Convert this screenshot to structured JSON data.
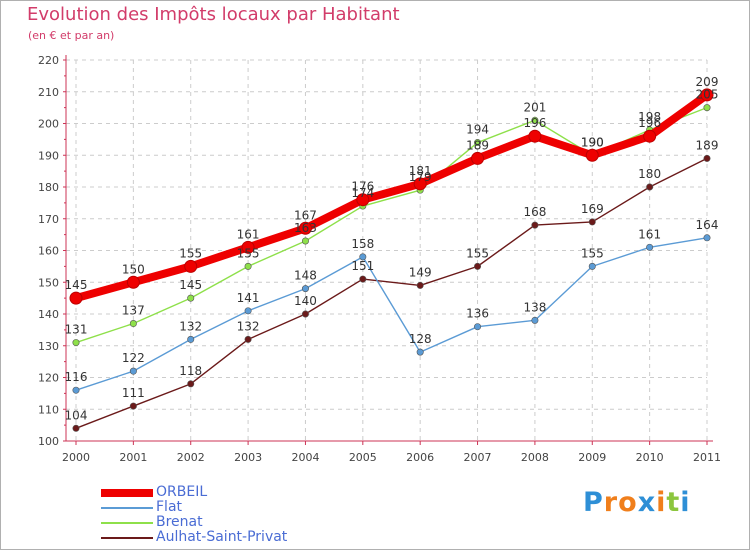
{
  "title": "Evolution des Impôts locaux par Habitant",
  "subtitle": "(en € et par an)",
  "brand": {
    "letters": [
      "P",
      "r",
      "o",
      "x",
      "i",
      "t",
      "i"
    ],
    "colors": [
      "#2e8fd6",
      "#f07f1c",
      "#f07f1c",
      "#2e8fd6",
      "#f07f1c",
      "#8cc63e",
      "#2e8fd6"
    ]
  },
  "chart_data": {
    "type": "line",
    "title": "Evolution des Impôts locaux par Habitant",
    "subtitle": "(en € et par an)",
    "xlabel": "",
    "ylabel": "",
    "ylim": [
      100,
      220
    ],
    "yticks": [
      100,
      110,
      120,
      130,
      140,
      150,
      160,
      170,
      180,
      190,
      200,
      210,
      220
    ],
    "categories": [
      "2000",
      "2001",
      "2002",
      "2003",
      "2004",
      "2005",
      "2006",
      "2007",
      "2008",
      "2009",
      "2010",
      "2011"
    ],
    "grid": true,
    "legend_position": "bottom-left",
    "series": [
      {
        "name": "ORBEIL",
        "color": "#ee0000",
        "values": [
          145,
          150,
          155,
          161,
          167,
          176,
          181,
          189,
          196,
          190,
          196,
          209
        ],
        "labels": [
          "145",
          "150",
          "155",
          "161",
          "167",
          "176",
          "181",
          "189",
          "196",
          "190",
          "196",
          "209"
        ]
      },
      {
        "name": "Flat",
        "color": "#5b9bd5",
        "values": [
          116,
          122,
          132,
          141,
          148,
          158,
          128,
          136,
          138,
          155,
          161,
          164
        ],
        "labels": [
          "116",
          "122",
          "132",
          "141",
          "148",
          "158",
          "128",
          "136",
          "138",
          "155",
          "161",
          "164"
        ]
      },
      {
        "name": "Brenat",
        "color": "#8ee04a",
        "values": [
          131,
          137,
          145,
          155,
          163,
          174,
          179,
          194,
          201,
          190,
          198,
          205
        ],
        "labels": [
          "131",
          "137",
          "145",
          "155",
          "163",
          "174",
          "179",
          "194",
          "201",
          "190",
          "198",
          "205"
        ]
      },
      {
        "name": "Aulhat-Saint-Privat",
        "color": "#6b1a1a",
        "values": [
          104,
          111,
          118,
          132,
          140,
          151,
          149,
          155,
          168,
          169,
          180,
          189
        ],
        "labels": [
          "104",
          "111",
          "118",
          "132",
          "140",
          "151",
          "149",
          "155",
          "168",
          "169",
          "180",
          "189"
        ]
      }
    ]
  }
}
